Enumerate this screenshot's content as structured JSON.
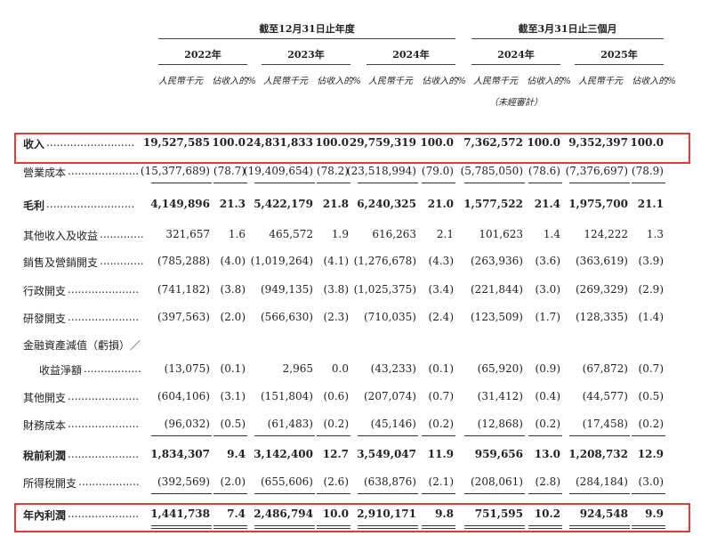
{
  "header": {
    "group_fy": "截至12月31日止年度",
    "group_q": "截至3月31日止三個月",
    "years": [
      "2022年",
      "2023年",
      "2024年",
      "2024年",
      "2025年"
    ],
    "unit_amount": "人民幣千元",
    "unit_pct": "佔收入的%",
    "unaudited": "（未經審計）"
  },
  "rows": [
    {
      "label": "收入",
      "amounts": [
        "19,527,585",
        "24,831,833",
        "29,759,319",
        "7,362,572",
        "9,352,397"
      ],
      "pcts": [
        "100.0",
        "100.0",
        "100.0",
        "100.0",
        "100.0"
      ]
    },
    {
      "label": "營業成本",
      "amounts": [
        "(15,377,689)",
        "(19,409,654)",
        "(23,518,994)",
        "(5,785,050)",
        "(7,376,697)"
      ],
      "pcts": [
        "(78.7)",
        "(78.2)",
        "(79.0)",
        "(78.6)",
        "(78.9)"
      ]
    },
    {
      "label": "毛利",
      "amounts": [
        "4,149,896",
        "5,422,179",
        "6,240,325",
        "1,577,522",
        "1,975,700"
      ],
      "pcts": [
        "21.3",
        "21.8",
        "21.0",
        "21.4",
        "21.1"
      ]
    },
    {
      "label": "其他收入及收益",
      "amounts": [
        "321,657",
        "465,572",
        "616,263",
        "101,623",
        "124,222"
      ],
      "pcts": [
        "1.6",
        "1.9",
        "2.1",
        "1.4",
        "1.3"
      ]
    },
    {
      "label": "銷售及營銷開支",
      "amounts": [
        "(785,288)",
        "(1,019,264)",
        "(1,276,678)",
        "(263,936)",
        "(363,619)"
      ],
      "pcts": [
        "(4.0)",
        "(4.1)",
        "(4.3)",
        "(3.6)",
        "(3.9)"
      ]
    },
    {
      "label": "行政開支",
      "amounts": [
        "(741,182)",
        "(949,135)",
        "(1,025,375)",
        "(221,844)",
        "(269,329)"
      ],
      "pcts": [
        "(3.8)",
        "(3.8)",
        "(3.4)",
        "(3.0)",
        "(2.9)"
      ]
    },
    {
      "label": "研發開支",
      "amounts": [
        "(397,563)",
        "(566,630)",
        "(710,035)",
        "(123,509)",
        "(128,335)"
      ],
      "pcts": [
        "(2.0)",
        "(2.3)",
        "(2.4)",
        "(1.7)",
        "(1.4)"
      ]
    },
    {
      "label": "金融資產減值（虧損）／",
      "amounts": [
        "",
        "",
        "",
        "",
        ""
      ],
      "pcts": [
        "",
        "",
        "",
        "",
        ""
      ]
    },
    {
      "label": "收益淨額",
      "amounts": [
        "(13,075)",
        "2,965",
        "(43,233)",
        "(65,920)",
        "(67,872)"
      ],
      "pcts": [
        "(0.1)",
        "0.0",
        "(0.1)",
        "(0.9)",
        "(0.7)"
      ]
    },
    {
      "label": "其他開支",
      "amounts": [
        "(604,106)",
        "(151,804)",
        "(207,074)",
        "(31,412)",
        "(44,577)"
      ],
      "pcts": [
        "(3.1)",
        "(0.6)",
        "(0.7)",
        "(0.4)",
        "(0.5)"
      ]
    },
    {
      "label": "財務成本",
      "amounts": [
        "(96,032)",
        "(61,483)",
        "(45,146)",
        "(12,868)",
        "(17,458)"
      ],
      "pcts": [
        "(0.5)",
        "(0.2)",
        "(0.2)",
        "(0.2)",
        "(0.2)"
      ]
    },
    {
      "label": "稅前利潤",
      "amounts": [
        "1,834,307",
        "3,142,400",
        "3,549,047",
        "959,656",
        "1,208,732"
      ],
      "pcts": [
        "9.4",
        "12.7",
        "11.9",
        "13.0",
        "12.9"
      ]
    },
    {
      "label": "所得稅開支",
      "amounts": [
        "(392,569)",
        "(655,606)",
        "(638,876)",
        "(208,061)",
        "(284,184)"
      ],
      "pcts": [
        "(2.0)",
        "(2.6)",
        "(2.1)",
        "(2.8)",
        "(3.0)"
      ]
    },
    {
      "label": "年內利潤",
      "amounts": [
        "1,441,738",
        "2,486,794",
        "2,910,171",
        "751,595",
        "924,548"
      ],
      "pcts": [
        "7.4",
        "10.0",
        "9.8",
        "10.2",
        "9.9"
      ]
    }
  ]
}
